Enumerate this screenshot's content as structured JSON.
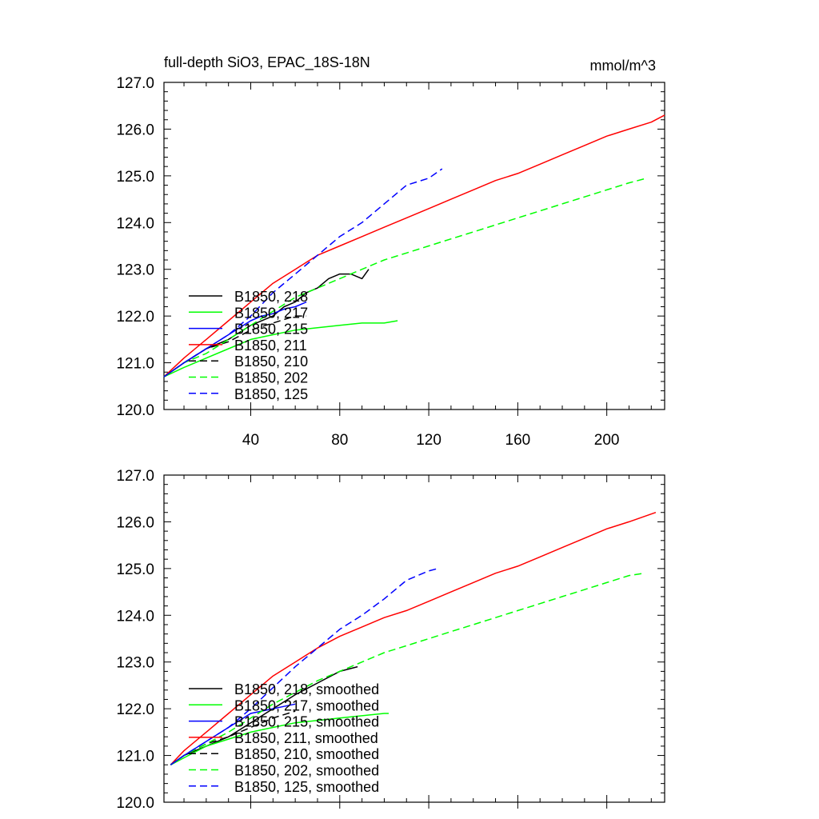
{
  "figure": {
    "title": "full-depth SiO3, EPAC_18S-18N",
    "units": "mmol/m^3"
  },
  "chart_data": [
    {
      "type": "line",
      "panel": "raw",
      "xlim": [
        1,
        226
      ],
      "ylim": [
        120.0,
        127.0
      ],
      "xticks": [
        40,
        80,
        120,
        160,
        200
      ],
      "yticks": [
        "120.0",
        "121.0",
        "122.0",
        "123.0",
        "124.0",
        "125.0",
        "126.0",
        "127.0"
      ],
      "legend": "lower-left",
      "series": [
        {
          "name": "B1850, 218",
          "color": "#000000",
          "dash": "solid",
          "x": [
            1,
            10,
            20,
            30,
            40,
            50,
            55,
            60,
            65,
            70,
            75,
            80,
            85,
            90,
            93
          ],
          "y": [
            120.7,
            121.0,
            121.3,
            121.5,
            121.8,
            122.0,
            122.2,
            122.3,
            122.5,
            122.6,
            122.8,
            122.9,
            122.9,
            122.8,
            123.0
          ]
        },
        {
          "name": "B1850, 217",
          "color": "#00ff00",
          "dash": "solid",
          "x": [
            1,
            10,
            20,
            30,
            40,
            50,
            60,
            70,
            80,
            90,
            100,
            106
          ],
          "y": [
            120.7,
            120.9,
            121.1,
            121.3,
            121.5,
            121.6,
            121.7,
            121.75,
            121.8,
            121.85,
            121.85,
            121.9
          ]
        },
        {
          "name": "B1850, 215",
          "color": "#0000ff",
          "dash": "solid",
          "x": [
            1,
            10,
            20,
            30,
            40,
            45,
            50,
            55,
            60,
            65
          ],
          "y": [
            120.7,
            121.0,
            121.3,
            121.6,
            121.9,
            122.0,
            122.05,
            122.15,
            122.2,
            122.3
          ]
        },
        {
          "name": "B1850, 211",
          "color": "#ff0000",
          "dash": "solid",
          "x": [
            1,
            10,
            20,
            30,
            35,
            40,
            50,
            60,
            70,
            80,
            90,
            100,
            110,
            120,
            130,
            140,
            150,
            160,
            170,
            180,
            190,
            200,
            210,
            220,
            226
          ],
          "y": [
            120.7,
            121.1,
            121.5,
            121.9,
            122.1,
            122.3,
            122.7,
            123.0,
            123.3,
            123.5,
            123.7,
            123.9,
            124.1,
            124.3,
            124.5,
            124.7,
            124.9,
            125.05,
            125.25,
            125.45,
            125.65,
            125.85,
            126.0,
            126.15,
            126.3
          ]
        },
        {
          "name": "B1850, 210",
          "color": "#000000",
          "dash": "dashed",
          "x": [
            1,
            10,
            20,
            30,
            40,
            50,
            60,
            65
          ],
          "y": [
            120.7,
            121.0,
            121.3,
            121.45,
            121.7,
            121.85,
            122.0,
            122.0
          ]
        },
        {
          "name": "B1850, 202",
          "color": "#00ff00",
          "dash": "dashed",
          "x": [
            1,
            10,
            20,
            30,
            40,
            50,
            60,
            70,
            80,
            90,
            100,
            110,
            120,
            130,
            140,
            150,
            160,
            170,
            180,
            190,
            200,
            210,
            218
          ],
          "y": [
            120.7,
            121.0,
            121.2,
            121.5,
            121.8,
            122.1,
            122.4,
            122.6,
            122.8,
            123.0,
            123.2,
            123.35,
            123.5,
            123.65,
            123.8,
            123.95,
            124.1,
            124.25,
            124.4,
            124.55,
            124.7,
            124.85,
            124.95
          ]
        },
        {
          "name": "B1850, 125",
          "color": "#0000ff",
          "dash": "dashed",
          "x": [
            1,
            10,
            20,
            30,
            40,
            50,
            60,
            70,
            80,
            90,
            100,
            110,
            120,
            126
          ],
          "y": [
            120.7,
            121.0,
            121.3,
            121.6,
            122.0,
            122.5,
            122.9,
            123.3,
            123.7,
            124.0,
            124.4,
            124.8,
            124.95,
            125.15
          ]
        }
      ]
    },
    {
      "type": "line",
      "panel": "smoothed",
      "xlim": [
        1,
        226
      ],
      "ylim": [
        120.0,
        127.0
      ],
      "xticks": [
        40,
        80,
        120,
        160,
        200
      ],
      "yticks": [
        "120.0",
        "121.0",
        "122.0",
        "123.0",
        "124.0",
        "125.0",
        "126.0",
        "127.0"
      ],
      "legend": "lower-left",
      "series": [
        {
          "name": "B1850, 218, smoothed",
          "color": "#000000",
          "dash": "solid",
          "x": [
            4,
            10,
            20,
            30,
            40,
            50,
            60,
            70,
            80,
            88
          ],
          "y": [
            120.8,
            121.0,
            121.2,
            121.4,
            121.7,
            122.0,
            122.3,
            122.55,
            122.8,
            122.9
          ]
        },
        {
          "name": "B1850, 217, smoothed",
          "color": "#00ff00",
          "dash": "solid",
          "x": [
            4,
            10,
            20,
            30,
            40,
            50,
            60,
            70,
            80,
            90,
            100,
            102
          ],
          "y": [
            120.8,
            120.95,
            121.2,
            121.35,
            121.5,
            121.6,
            121.7,
            121.75,
            121.8,
            121.85,
            121.9,
            121.9
          ]
        },
        {
          "name": "B1850, 215, smoothed",
          "color": "#0000ff",
          "dash": "solid",
          "x": [
            4,
            10,
            20,
            30,
            40,
            50,
            55,
            60
          ],
          "y": [
            120.8,
            121.0,
            121.3,
            121.6,
            121.9,
            122.0,
            122.05,
            122.1
          ]
        },
        {
          "name": "B1850, 211, smoothed",
          "color": "#ff0000",
          "dash": "solid",
          "x": [
            4,
            10,
            20,
            30,
            40,
            50,
            60,
            70,
            80,
            90,
            100,
            110,
            120,
            130,
            140,
            150,
            160,
            170,
            180,
            190,
            200,
            210,
            222
          ],
          "y": [
            120.8,
            121.1,
            121.5,
            121.9,
            122.3,
            122.7,
            123.0,
            123.3,
            123.55,
            123.75,
            123.95,
            124.1,
            124.3,
            124.5,
            124.7,
            124.9,
            125.05,
            125.25,
            125.45,
            125.65,
            125.85,
            126.0,
            126.2
          ]
        },
        {
          "name": "B1850, 210, smoothed",
          "color": "#000000",
          "dash": "dashed",
          "x": [
            4,
            10,
            20,
            30,
            40,
            50,
            60
          ],
          "y": [
            120.8,
            121.0,
            121.25,
            121.4,
            121.6,
            121.8,
            121.95
          ]
        },
        {
          "name": "B1850, 202, smoothed",
          "color": "#00ff00",
          "dash": "dashed",
          "x": [
            4,
            10,
            20,
            30,
            40,
            50,
            60,
            70,
            80,
            90,
            100,
            110,
            120,
            130,
            140,
            150,
            160,
            170,
            180,
            190,
            200,
            210,
            217
          ],
          "y": [
            120.8,
            121.0,
            121.25,
            121.5,
            121.8,
            122.1,
            122.35,
            122.6,
            122.8,
            123.0,
            123.2,
            123.35,
            123.5,
            123.65,
            123.8,
            123.95,
            124.1,
            124.25,
            124.4,
            124.55,
            124.7,
            124.85,
            124.9
          ]
        },
        {
          "name": "B1850, 125, smoothed",
          "color": "#0000ff",
          "dash": "dashed",
          "x": [
            4,
            10,
            20,
            30,
            40,
            50,
            60,
            70,
            80,
            90,
            100,
            110,
            120,
            124
          ],
          "y": [
            120.8,
            121.0,
            121.3,
            121.6,
            122.0,
            122.45,
            122.9,
            123.3,
            123.7,
            124.0,
            124.35,
            124.75,
            124.95,
            125.0
          ]
        }
      ]
    }
  ]
}
